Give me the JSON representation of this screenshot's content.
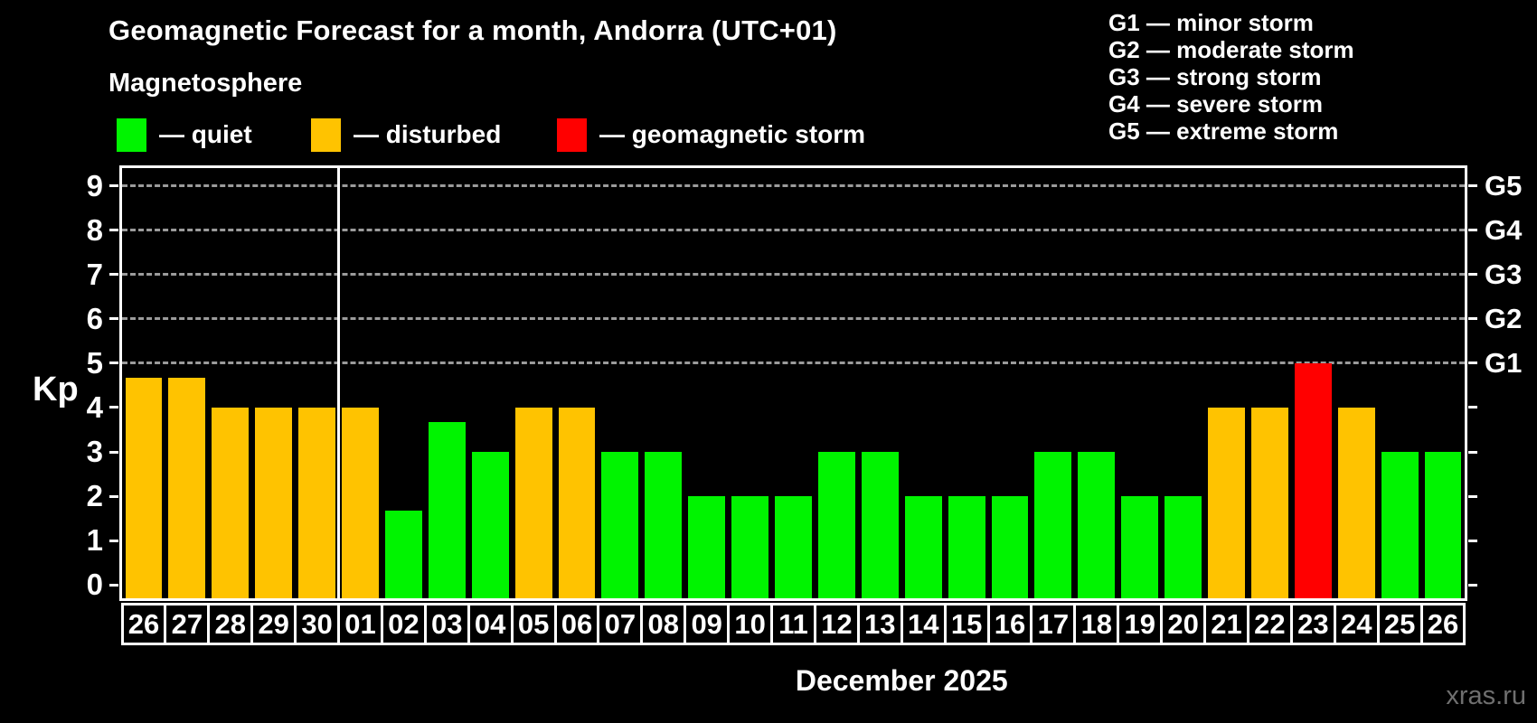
{
  "header": {
    "title": "Geomagnetic Forecast for a month, Andorra (UTC+01)",
    "subtitle": "Magnetosphere"
  },
  "legend": {
    "items": [
      {
        "status": "quiet",
        "label": "— quiet",
        "color": "#00F400"
      },
      {
        "status": "disturbed",
        "label": "— disturbed",
        "color": "#FFC300"
      },
      {
        "status": "storm",
        "label": "— geomagnetic storm",
        "color": "#FF0000"
      }
    ]
  },
  "g_legend": [
    "G1 — minor storm",
    "G2 — moderate storm",
    "G3 — strong storm",
    "G4 — severe storm",
    "G5 — extreme storm"
  ],
  "watermark": "xras.ru",
  "chart_data": {
    "type": "bar",
    "title": "Geomagnetic Forecast for a month, Andorra (UTC+01)",
    "xlabel": "December 2025",
    "ylabel": "Kp",
    "ylim": [
      0,
      9.4
    ],
    "yticks": [
      0,
      1,
      2,
      3,
      4,
      5,
      6,
      7,
      8,
      9
    ],
    "grid": "dashed horizontal lines at Kp 5-9",
    "grid_color": "#9b9b9b",
    "axis_color": "#FFFFFF",
    "g_levels": [
      {
        "label": "G1",
        "value": 5
      },
      {
        "label": "G2",
        "value": 6
      },
      {
        "label": "G3",
        "value": 7
      },
      {
        "label": "G4",
        "value": 8
      },
      {
        "label": "G5",
        "value": 9
      }
    ],
    "categories": [
      "26",
      "27",
      "28",
      "29",
      "30",
      "01",
      "02",
      "03",
      "04",
      "05",
      "06",
      "07",
      "08",
      "09",
      "10",
      "11",
      "12",
      "13",
      "14",
      "15",
      "16",
      "17",
      "18",
      "19",
      "20",
      "21",
      "22",
      "23",
      "24",
      "25",
      "26"
    ],
    "values": [
      4.67,
      4.67,
      4,
      4,
      4,
      4,
      1.67,
      3.67,
      3,
      4,
      4,
      3,
      3,
      2,
      2,
      2,
      3,
      3,
      2,
      2,
      2,
      3,
      3,
      2,
      2,
      4,
      4,
      5,
      4,
      3,
      3
    ],
    "statuses": [
      "disturbed",
      "disturbed",
      "disturbed",
      "disturbed",
      "disturbed",
      "disturbed",
      "quiet",
      "quiet",
      "quiet",
      "disturbed",
      "disturbed",
      "quiet",
      "quiet",
      "quiet",
      "quiet",
      "quiet",
      "quiet",
      "quiet",
      "quiet",
      "quiet",
      "quiet",
      "quiet",
      "quiet",
      "quiet",
      "quiet",
      "disturbed",
      "disturbed",
      "storm",
      "disturbed",
      "quiet",
      "quiet"
    ],
    "colors": {
      "quiet": "#00F400",
      "disturbed": "#FFC300",
      "storm": "#FF0000"
    },
    "month_separator_after_index": 4,
    "legend_position": "top-left"
  }
}
